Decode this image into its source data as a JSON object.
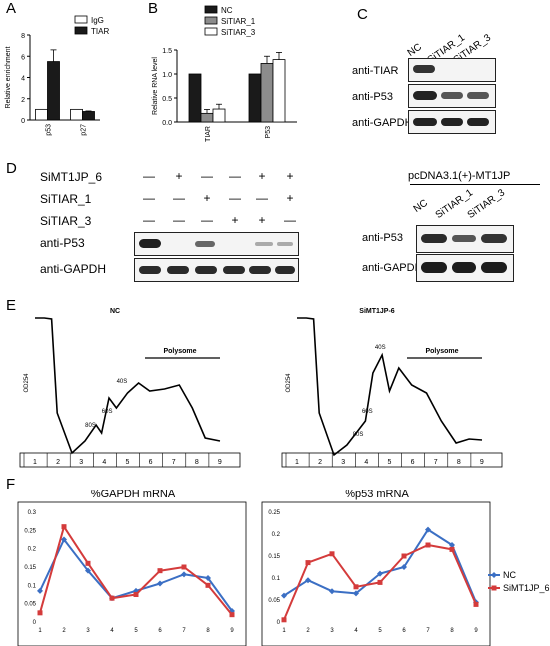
{
  "panels": {
    "A": "A",
    "B": "B",
    "C": "C",
    "D": "D",
    "E": "E",
    "F": "F"
  },
  "chart_data": [
    {
      "panel": "A",
      "type": "bar",
      "ylabel": "Relative enrichment",
      "categories": [
        "p53",
        "p27"
      ],
      "ylim": [
        0,
        8
      ],
      "yticks": [
        "0",
        "2",
        "4",
        "6",
        "8"
      ],
      "series": [
        {
          "name": "IgG",
          "values": [
            1.0,
            1.0
          ],
          "errors": [
            0,
            0
          ],
          "color": "#ffffff"
        },
        {
          "name": "TIAR",
          "values": [
            5.5,
            0.8
          ],
          "errors": [
            1.1,
            0.05
          ],
          "color": "#1a1a1a"
        }
      ]
    },
    {
      "panel": "B",
      "type": "bar",
      "ylabel": "Relative RNA level",
      "categories": [
        "TIAR",
        "P53"
      ],
      "ylim": [
        0,
        1.5
      ],
      "yticks": [
        "0.0",
        "0.5",
        "1.0",
        "1.5"
      ],
      "series": [
        {
          "name": "NC",
          "values": [
            1.0,
            1.0
          ],
          "errors": [
            0,
            0
          ],
          "color": "#1a1a1a"
        },
        {
          "name": "SiTIAR_1",
          "values": [
            0.18,
            1.22
          ],
          "errors": [
            0.08,
            0.15
          ],
          "color": "#8c8c8c"
        },
        {
          "name": "SiTIAR_3",
          "values": [
            0.27,
            1.3
          ],
          "errors": [
            0.1,
            0.15
          ],
          "color": "#ffffff"
        }
      ]
    },
    {
      "panel": "E",
      "type": "line",
      "titles": [
        "NC",
        "SiMT1JP-6"
      ],
      "ylabel": "OD254",
      "polysome_label": "Polysome",
      "fractions": [
        "1",
        "2",
        "3",
        "4",
        "5",
        "6",
        "7",
        "8",
        "9"
      ],
      "peaks": [
        "40S",
        "60S",
        "80S"
      ]
    },
    {
      "panel": "F",
      "type": "line",
      "titles": [
        "%GAPDH  mRNA",
        "%p53 mRNA"
      ],
      "x": [
        1,
        2,
        3,
        4,
        5,
        6,
        7,
        8,
        9
      ],
      "left": {
        "yticks": [
          "0",
          "0.05",
          "0.1",
          "0.15",
          "0.2",
          "0.25",
          "0.3"
        ],
        "ylim": [
          0,
          0.3
        ],
        "series": [
          {
            "name": "NC",
            "color": "#3b6fc4",
            "marker": "diamond",
            "values": [
              0.085,
              0.225,
              0.14,
              0.065,
              0.085,
              0.105,
              0.13,
              0.12,
              0.03
            ]
          },
          {
            "name": "SiMT1JP_6",
            "color": "#d43b3b",
            "marker": "square",
            "values": [
              0.025,
              0.26,
              0.16,
              0.065,
              0.075,
              0.14,
              0.15,
              0.1,
              0.02
            ]
          }
        ]
      },
      "right": {
        "yticks": [
          "0",
          "0.05",
          "0.1",
          "0.15",
          "0.2",
          "0.25"
        ],
        "ylim": [
          0,
          0.25
        ],
        "series": [
          {
            "name": "NC",
            "color": "#3b6fc4",
            "marker": "diamond",
            "values": [
              0.06,
              0.095,
              0.07,
              0.065,
              0.11,
              0.125,
              0.21,
              0.175,
              0.045
            ]
          },
          {
            "name": "SiMT1JP_6",
            "color": "#d43b3b",
            "marker": "square",
            "values": [
              0.005,
              0.135,
              0.155,
              0.08,
              0.09,
              0.15,
              0.175,
              0.165,
              0.04
            ]
          }
        ]
      },
      "legend": [
        "NC",
        "SiMT1JP_6"
      ]
    }
  ],
  "blotC": {
    "lanes": [
      "NC",
      "SiTIAR_1",
      "SiTIAR_3"
    ],
    "rows": [
      "anti-TIAR",
      "anti-P53",
      "anti-GAPDH"
    ]
  },
  "blotD": {
    "conditions": [
      {
        "label": "SiMT1JP_6",
        "signs": [
          "—",
          "+",
          "—",
          "—",
          "+",
          "+"
        ]
      },
      {
        "label": "SiTIAR_1",
        "signs": [
          "—",
          "—",
          "+",
          "—",
          "—",
          "+"
        ]
      },
      {
        "label": "SiTIAR_3",
        "signs": [
          "—",
          "—",
          "—",
          "+",
          "+",
          "—"
        ]
      }
    ],
    "rows": [
      "anti-P53",
      "anti-GAPDH"
    ]
  },
  "blotD2": {
    "header": "pcDNA3.1(+)-MT1JP",
    "lanes": [
      "NC",
      "SiTIAR_1",
      "SiTIAR_3"
    ],
    "rows": [
      "anti-P53",
      "anti-GAPDH"
    ]
  }
}
